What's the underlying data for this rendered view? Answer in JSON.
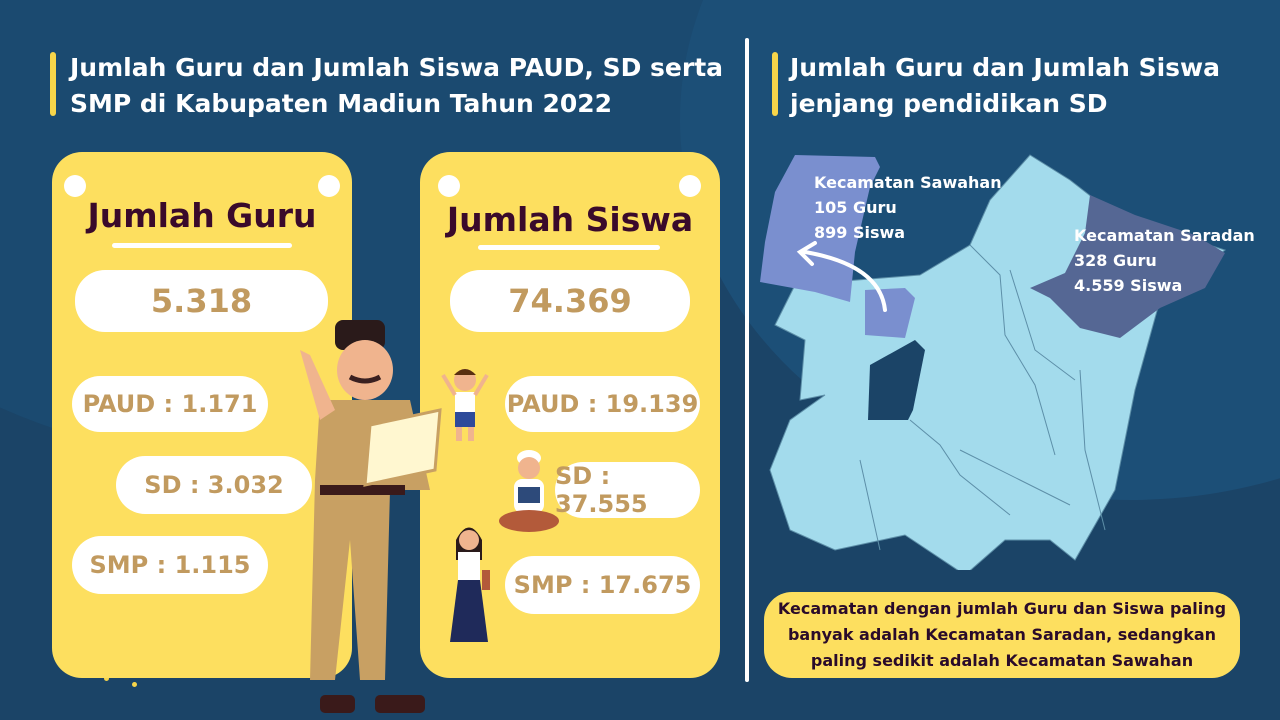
{
  "left": {
    "title_line1": "Jumlah Guru dan Jumlah Siswa PAUD, SD serta",
    "title_line2": "SMP di Kabupaten Madiun Tahun 2022"
  },
  "guru": {
    "title": "Jumlah Guru",
    "total": "5.318",
    "paud": "PAUD : 1.171",
    "sd": "SD : 3.032",
    "smp": "SMP : 1.115"
  },
  "siswa": {
    "title": "Jumlah Siswa",
    "total": "74.369",
    "paud": "PAUD : 19.139",
    "sd": "SD : 37.555",
    "smp": "SMP : 17.675"
  },
  "right": {
    "title_line1": "Jumlah Guru dan Jumlah Siswa",
    "title_line2": "jenjang pendidikan SD"
  },
  "map": {
    "sawahan": {
      "name": "Kecamatan Sawahan",
      "guru": "105 Guru",
      "siswa": "899 Siswa",
      "color": "#7a8fcf"
    },
    "saradan": {
      "name": "Kecamatan Saradan",
      "guru": "328 Guru",
      "siswa": "4.559 Siswa",
      "color": "#556794"
    },
    "base_color": "#a3dbec"
  },
  "note": {
    "line1": "Kecamatan dengan jumlah Guru dan Siswa paling",
    "line2": "banyak adalah Kecamatan Saradan, sedangkan",
    "line3": "paling sedikit adalah Kecamatan Sawahan"
  },
  "colors": {
    "background": "#1b4467",
    "card": "#fddf5f",
    "accent_bar": "#f7d54a",
    "value_text": "#c19a5f"
  }
}
